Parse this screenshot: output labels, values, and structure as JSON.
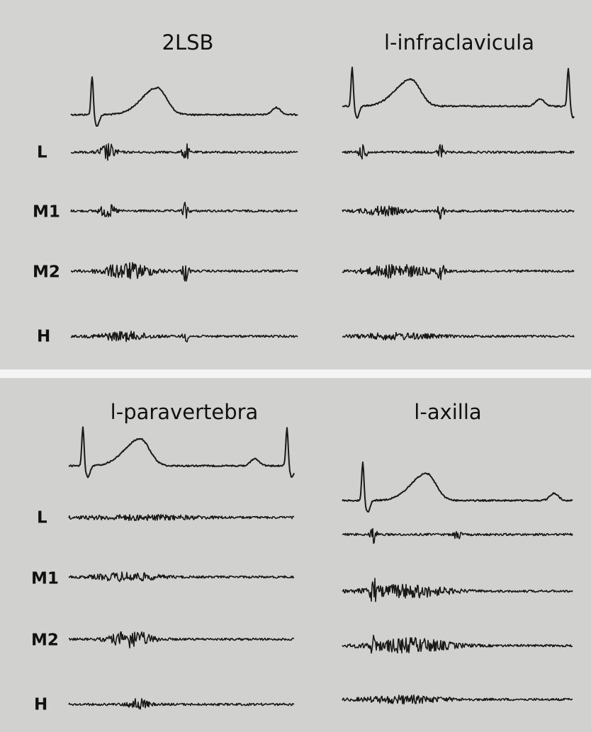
{
  "panels": [
    {
      "traces": [
        {
          "title": "2LSB"
        },
        {
          "title": "l-infraclavicula"
        }
      ],
      "row_labels": [
        "L",
        "M1",
        "M2",
        "H"
      ]
    },
    {
      "traces": [
        {
          "title": "l-paravertebra"
        },
        {
          "title": "l-axilla"
        }
      ],
      "row_labels": [
        "L",
        "M1",
        "M2",
        "H"
      ]
    }
  ]
}
